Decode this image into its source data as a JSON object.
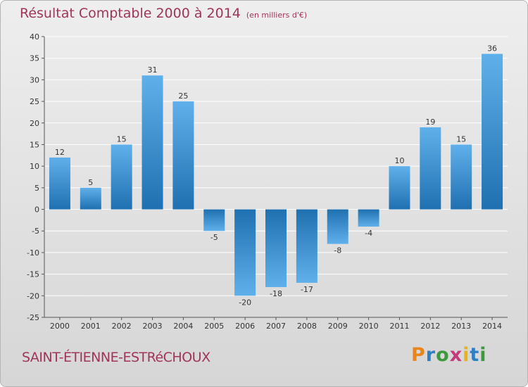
{
  "header": {
    "title": "Résultat Comptable 2000 à 2014",
    "subtitle": "(en milliers d'€)"
  },
  "footer": {
    "commune": "SAINT-ÉTIENNE-ESTRéCHOUX",
    "logo_letters": [
      {
        "ch": "P",
        "color": "#e8861b"
      },
      {
        "ch": "r",
        "color": "#2f7fc4"
      },
      {
        "ch": "o",
        "color": "#3c9a3c"
      },
      {
        "ch": "x",
        "color": "#c23b7a"
      },
      {
        "ch": "i",
        "color": "#e8b21b"
      },
      {
        "ch": "t",
        "color": "#2f7fc4"
      },
      {
        "ch": "i",
        "color": "#3c9a3c"
      }
    ]
  },
  "colors": {
    "title": "#a0345a",
    "bar_light": "#5fb0ea",
    "bar_dark": "#1f70b0",
    "grid": "#ffffff"
  },
  "chart_data": {
    "type": "bar",
    "title": "Résultat Comptable 2000 à 2014",
    "subtitle": "(en milliers d'€)",
    "categories": [
      "2000",
      "2001",
      "2002",
      "2003",
      "2004",
      "2005",
      "2006",
      "2007",
      "2008",
      "2009",
      "2010",
      "2011",
      "2012",
      "2013",
      "2014"
    ],
    "values": [
      12,
      5,
      15,
      31,
      25,
      -5,
      -20,
      -18,
      -17,
      -8,
      -4,
      10,
      19,
      15,
      36
    ],
    "ylim": [
      -25,
      40
    ],
    "yticks": [
      40,
      35,
      30,
      25,
      20,
      15,
      10,
      5,
      0,
      -5,
      -10,
      -15,
      -20,
      -25
    ],
    "grid": true,
    "legend": "none"
  }
}
